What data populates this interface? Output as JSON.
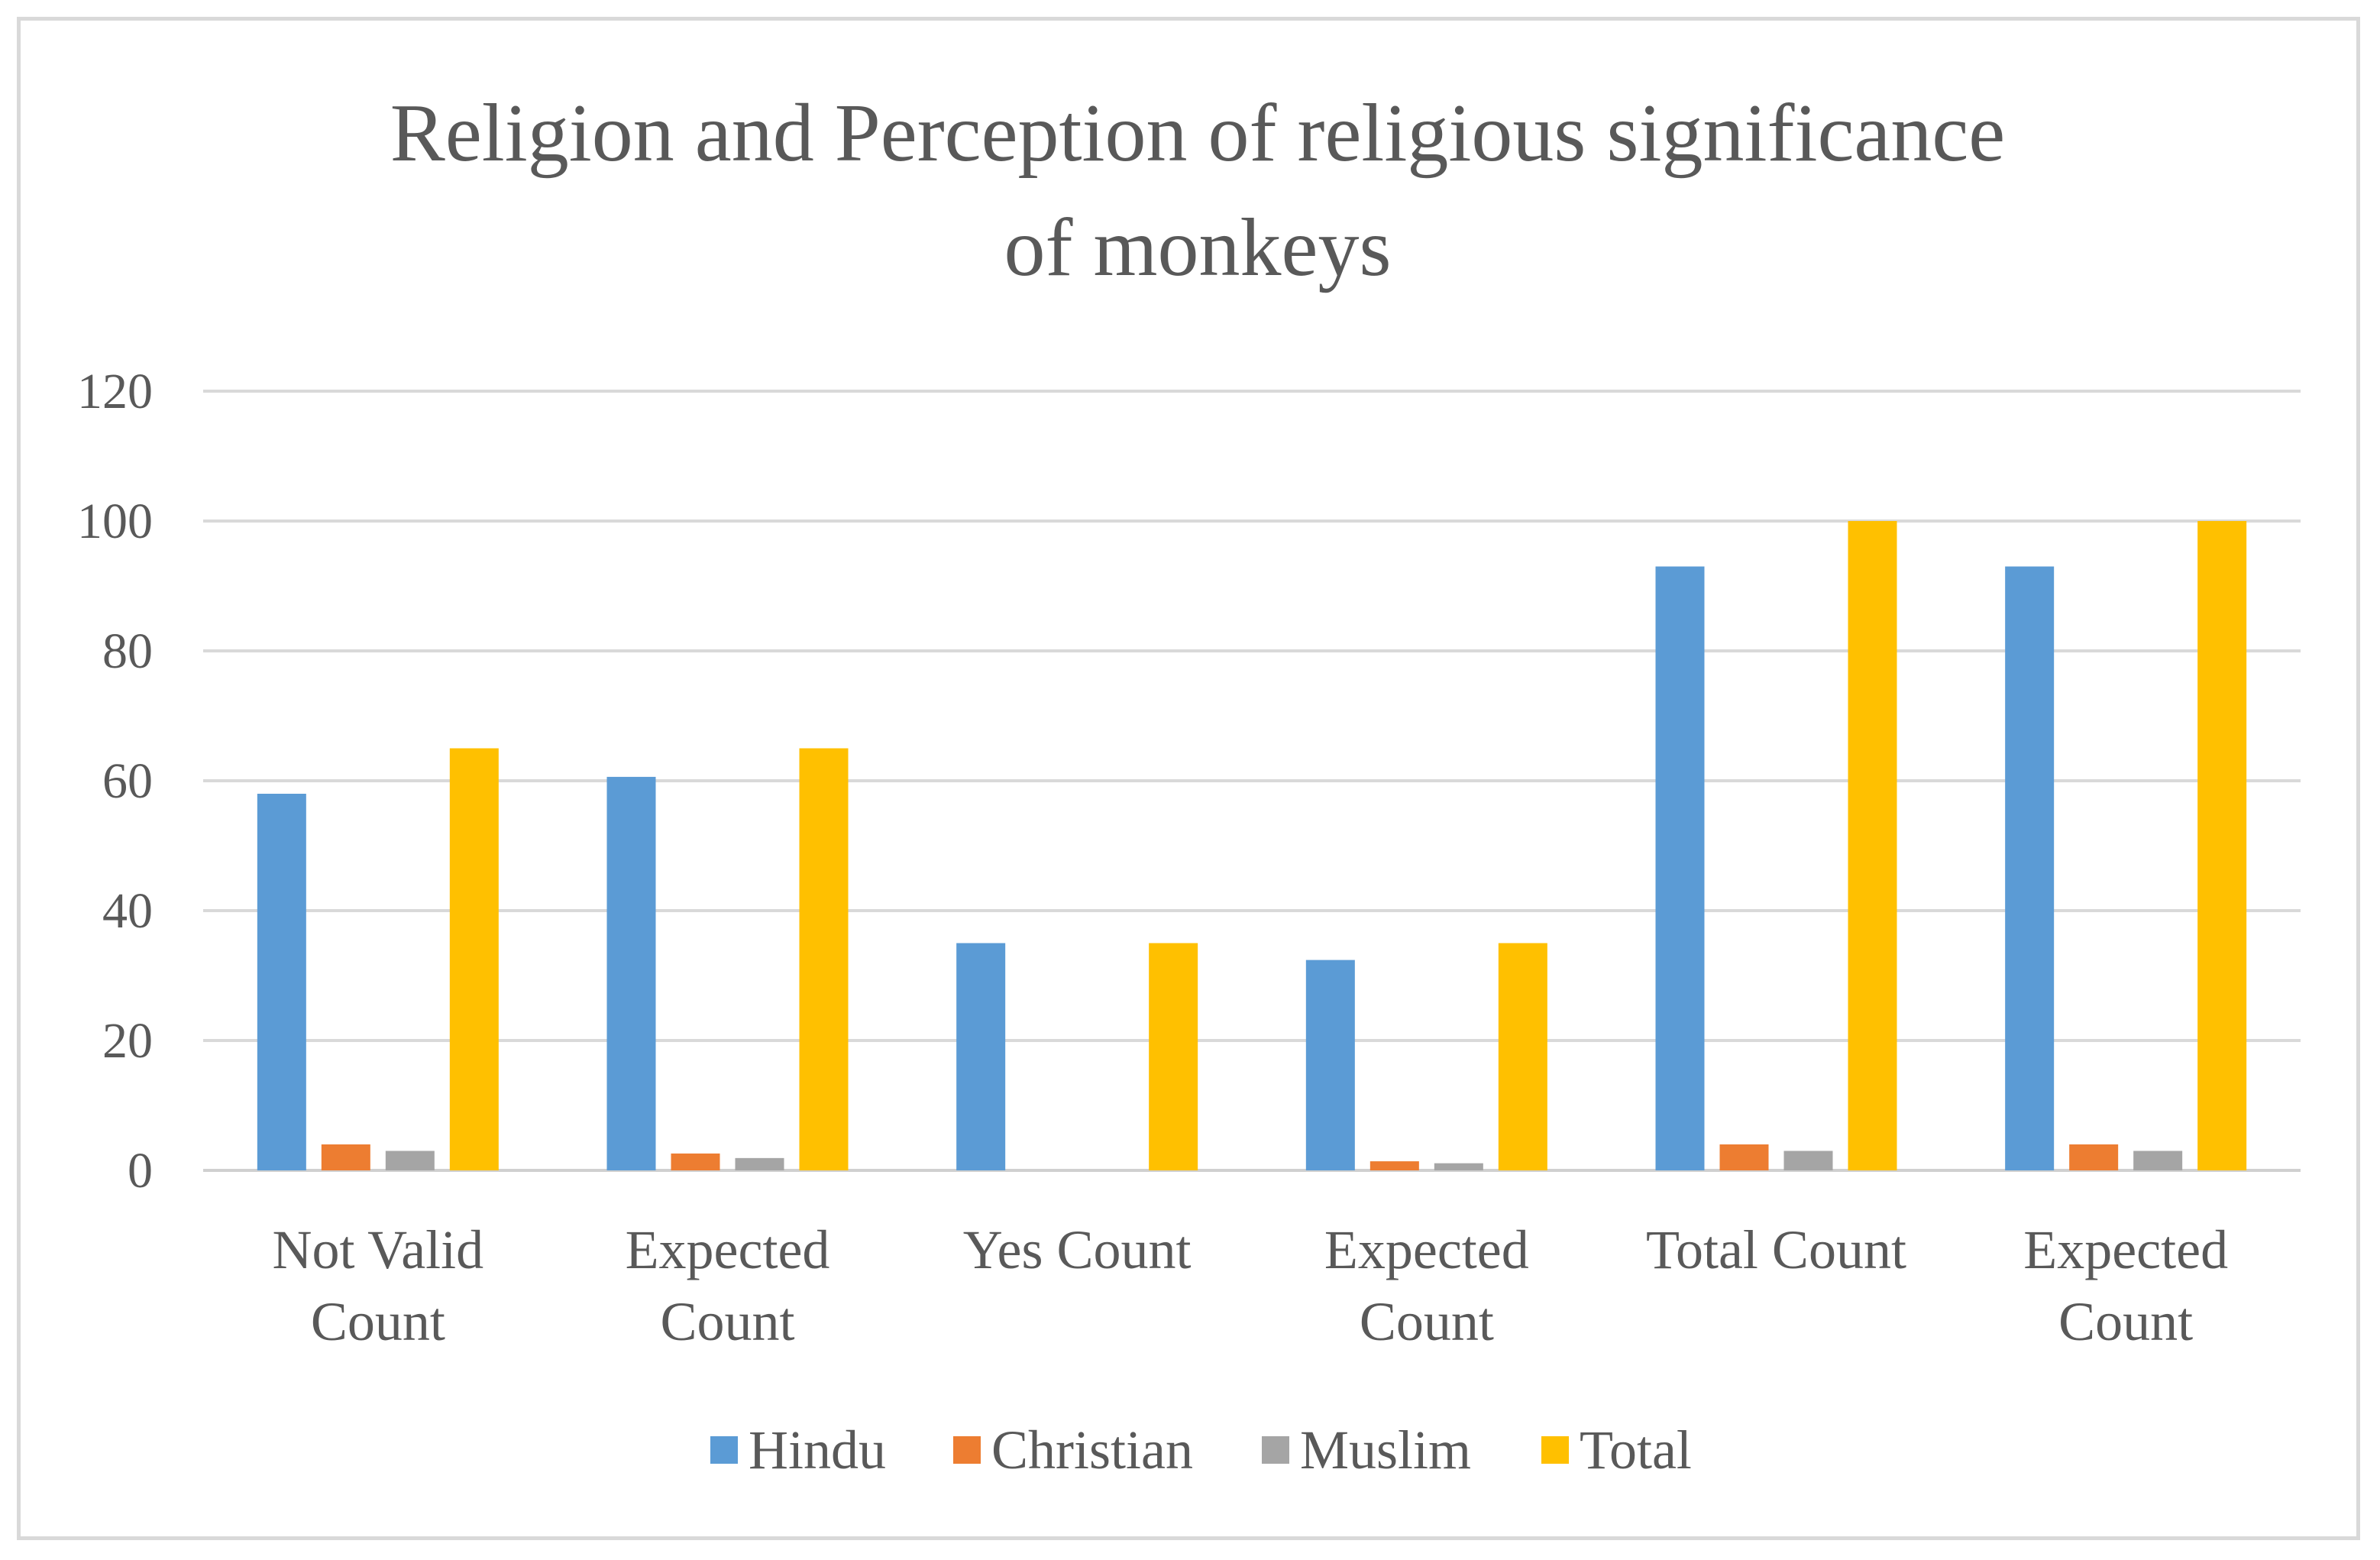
{
  "chart_data": {
    "type": "bar",
    "title_lines": [
      "Religion and Perception of religious significance",
      "of monkeys"
    ],
    "categories": [
      [
        "Not Valid",
        "Count"
      ],
      [
        "Expected",
        "Count"
      ],
      [
        "Yes Count"
      ],
      [
        "Expected",
        "Count"
      ],
      [
        "Total Count"
      ],
      [
        "Expected",
        "Count"
      ]
    ],
    "series": [
      {
        "name": "Hindu",
        "color": "#5b9bd5",
        "values": [
          58,
          60.6,
          35,
          32.4,
          93,
          93
        ]
      },
      {
        "name": "Christian",
        "color": "#ed7d31",
        "values": [
          4,
          2.6,
          0,
          1.4,
          4,
          4
        ]
      },
      {
        "name": "Muslim",
        "color": "#a5a5a5",
        "values": [
          3,
          1.9,
          0,
          1.1,
          3,
          3
        ]
      },
      {
        "name": "Total",
        "color": "#ffc000",
        "values": [
          65,
          65,
          35,
          35,
          100,
          100
        ]
      }
    ],
    "yticks": [
      0,
      20,
      40,
      60,
      80,
      100,
      120
    ],
    "ylim": [
      0,
      120
    ],
    "grid": true,
    "legend_position": "bottom"
  }
}
